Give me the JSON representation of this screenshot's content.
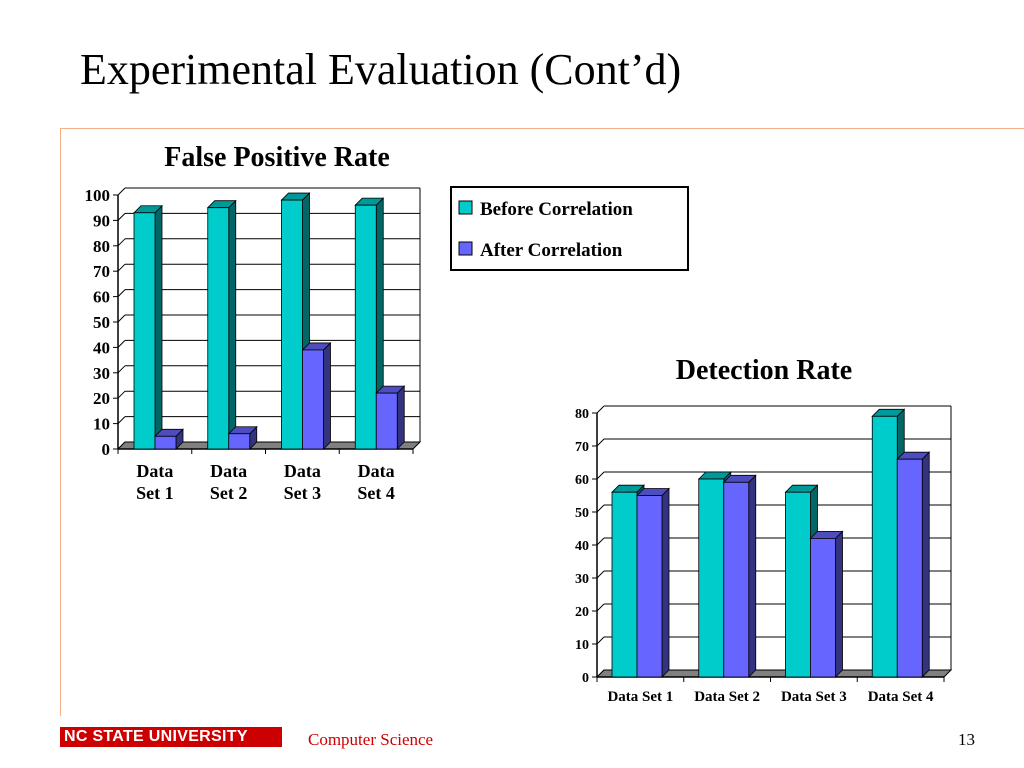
{
  "slide": {
    "title": "Experimental Evaluation (Cont’d)",
    "footer_logo": "NC STATE UNIVERSITY",
    "footer_dept": "Computer Science",
    "page_number": "13"
  },
  "colors": {
    "before": "#00cccc",
    "after": "#6666ff",
    "floor": "#808080",
    "rule": "#f3b18a",
    "brand_red": "#cc0000"
  },
  "legend": {
    "items": [
      "Before Correlation",
      "After Correlation"
    ]
  },
  "chart_data": [
    {
      "type": "bar",
      "title": "False Positive Rate",
      "categories": [
        "Data Set 1",
        "Data Set 2",
        "Data Set 3",
        "Data Set 4"
      ],
      "category_lines": [
        [
          "Data",
          "Set 1"
        ],
        [
          "Data",
          "Set 2"
        ],
        [
          "Data",
          "Set 3"
        ],
        [
          "Data",
          "Set 4"
        ]
      ],
      "series": [
        {
          "name": "Before Correlation",
          "values": [
            93,
            95,
            98,
            96
          ]
        },
        {
          "name": "After Correlation",
          "values": [
            5,
            6,
            39,
            22
          ]
        }
      ],
      "ylim": [
        0,
        100
      ],
      "yticks": [
        0,
        10,
        20,
        30,
        40,
        50,
        60,
        70,
        80,
        90,
        100
      ],
      "grid": true,
      "legend_position": "right"
    },
    {
      "type": "bar",
      "title": "Detection Rate",
      "categories": [
        "Data Set 1",
        "Data Set 2",
        "Data Set 3",
        "Data Set 4"
      ],
      "series": [
        {
          "name": "Before Correlation",
          "values": [
            56,
            60,
            56,
            79
          ]
        },
        {
          "name": "After Correlation",
          "values": [
            55,
            59,
            42,
            66
          ]
        }
      ],
      "ylim": [
        0,
        80
      ],
      "yticks": [
        0,
        10,
        20,
        30,
        40,
        50,
        60,
        70,
        80
      ],
      "grid": true
    }
  ]
}
